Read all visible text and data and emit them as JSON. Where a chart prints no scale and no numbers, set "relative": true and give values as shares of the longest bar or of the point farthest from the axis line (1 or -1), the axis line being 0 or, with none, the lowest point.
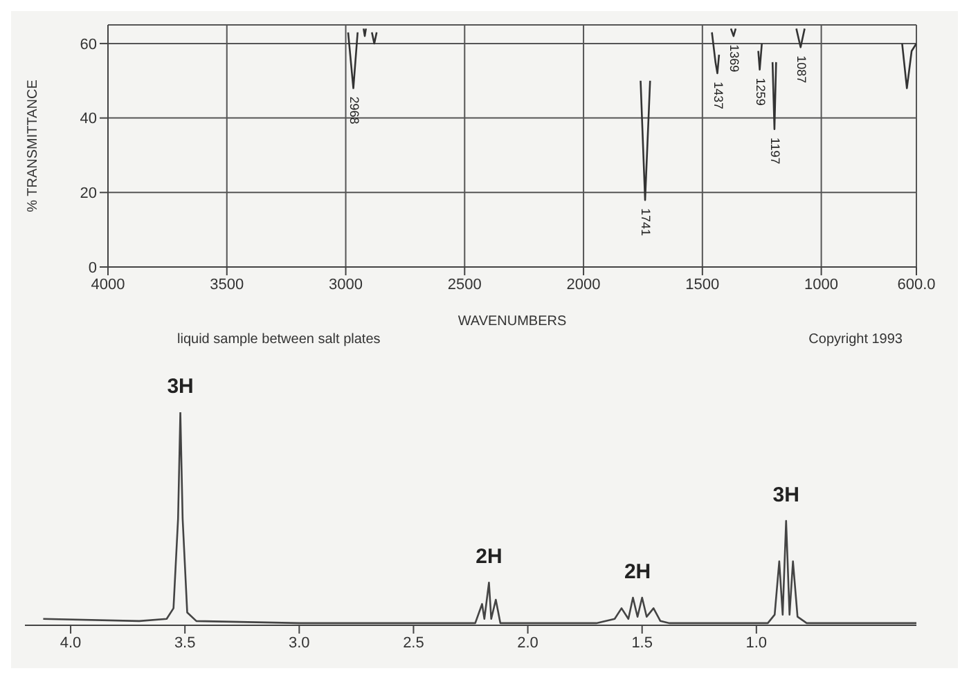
{
  "chart_data": [
    {
      "type": "line",
      "xlabel": "WAVENUMBERS",
      "ylabel": "% TRANSMITTANCE",
      "xlim": [
        4000,
        600
      ],
      "xticks": [
        4000,
        3500,
        3000,
        2500,
        2000,
        1500,
        1000,
        {
          "value": 600,
          "label": "600.0"
        }
      ],
      "ylim": [
        0,
        65
      ],
      "yticks": [
        0,
        20,
        40,
        60
      ],
      "grid": true,
      "x": [
        2990,
        2968,
        2950,
        2940,
        2925,
        2920,
        2915,
        2905,
        2890,
        2880,
        2870,
        2860,
        1760,
        1741,
        1720,
        1700,
        1460,
        1445,
        1437,
        1430,
        1400,
        1380,
        1369,
        1360,
        1280,
        1265,
        1259,
        1250,
        1220,
        1205,
        1197,
        1190,
        1170,
        1105,
        1087,
        1070,
        700,
        660,
        640,
        620,
        600
      ],
      "series": [
        {
          "color": "#333333",
          "values": [
            63,
            48,
            63,
            null,
            64,
            62,
            64,
            null,
            63,
            60,
            63,
            null,
            50,
            18,
            50,
            null,
            63,
            55,
            52,
            57,
            null,
            64,
            62,
            64,
            null,
            58,
            53,
            60,
            null,
            55,
            37,
            55,
            null,
            64,
            59,
            64,
            null,
            60,
            48,
            58,
            60
          ]
        }
      ],
      "annotations": [
        {
          "text": "2968",
          "x": 2968,
          "y": 48
        },
        {
          "text": "1741",
          "x": 1741,
          "y": 18
        },
        {
          "text": "1437",
          "x": 1437,
          "y": 52
        },
        {
          "text": "1369",
          "x": 1369,
          "y": 62
        },
        {
          "text": "1259",
          "x": 1259,
          "y": 53
        },
        {
          "text": "1197",
          "x": 1197,
          "y": 37
        },
        {
          "text": "1087",
          "x": 1087,
          "y": 59
        },
        "liquid sample between salt plates",
        "Copyright 1993"
      ]
    },
    {
      "type": "line",
      "relative": true,
      "xlim": [
        4.2,
        0.3
      ],
      "xticks": [
        {
          "value": 4,
          "label": "4.0"
        },
        3.5,
        {
          "value": 3,
          "label": "3.0"
        },
        2.5,
        {
          "value": 2,
          "label": "2.0"
        },
        1.5,
        {
          "value": 1,
          "label": "1.0"
        }
      ],
      "x": [
        4.12,
        3.7,
        3.58,
        3.55,
        3.53,
        3.52,
        3.51,
        3.49,
        3.45,
        3.0,
        2.5,
        2.23,
        2.2,
        2.19,
        2.17,
        2.16,
        2.14,
        2.12,
        1.7,
        1.62,
        1.59,
        1.56,
        1.54,
        1.52,
        1.5,
        1.48,
        1.45,
        1.42,
        1.38,
        0.95,
        0.92,
        0.9,
        0.885,
        0.87,
        0.855,
        0.84,
        0.82,
        0.78,
        0.3
      ],
      "series": [
        {
          "color": "#444444",
          "values": [
            0.03,
            0.02,
            0.03,
            0.08,
            0.5,
            1,
            0.5,
            0.06,
            0.02,
            0.01,
            0.01,
            0.01,
            0.1,
            0.03,
            0.2,
            0.03,
            0.12,
            0.01,
            0.01,
            0.03,
            0.08,
            0.03,
            0.13,
            0.04,
            0.13,
            0.04,
            0.08,
            0.02,
            0.01,
            0.01,
            0.05,
            0.3,
            0.05,
            0.49,
            0.05,
            0.3,
            0.04,
            0.01,
            0.01
          ]
        }
      ],
      "annotations": [
        {
          "text": "3H",
          "x": 3.52,
          "y": 1
        },
        {
          "text": "2H",
          "x": 2.17,
          "y": 0.2
        },
        {
          "text": "2H",
          "x": 1.52,
          "y": 0.13
        },
        {
          "text": "3H",
          "x": 0.87,
          "y": 0.49
        }
      ]
    }
  ]
}
